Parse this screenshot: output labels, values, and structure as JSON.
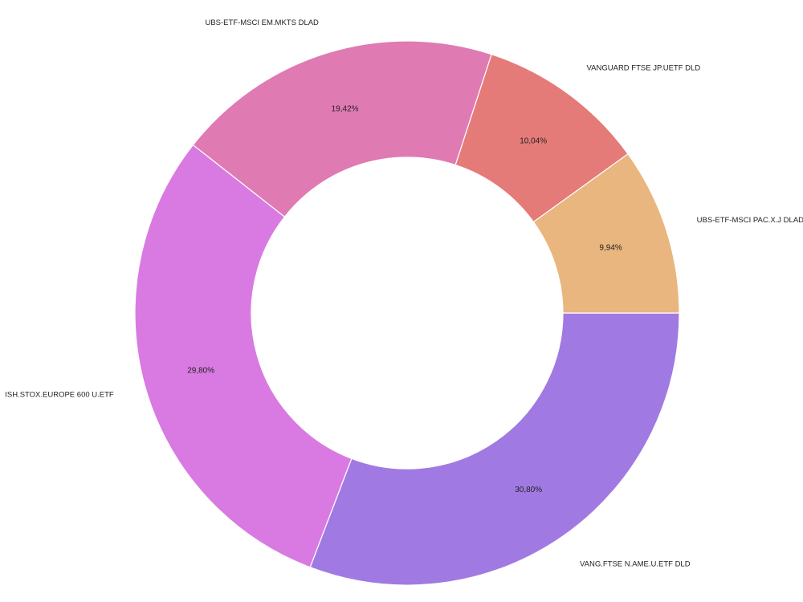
{
  "chart_data": {
    "type": "pie",
    "variant": "donut",
    "title": "",
    "legend": "none",
    "categories": [
      "VANG.FTSE N.AME.U.ETF DLD",
      "ISH.STOX.EUROPE 600 U.ETF",
      "UBS-ETF-MSCI EM.MKTS DLAD",
      "VANGUARD FTSE JP.UETF DLD",
      "UBS-ETF-MSCI PAC.X.J DLAD"
    ],
    "values": [
      30.8,
      29.8,
      19.42,
      10.04,
      9.94
    ],
    "value_labels": [
      "30,80%",
      "29,80%",
      "19,42%",
      "10,04%",
      "9,94%"
    ],
    "colors": [
      "#a07ae2",
      "#d97ae2",
      "#e07ab3",
      "#e57b78",
      "#e8b67e"
    ],
    "start_angle_deg": 0,
    "direction": "clockwise"
  }
}
